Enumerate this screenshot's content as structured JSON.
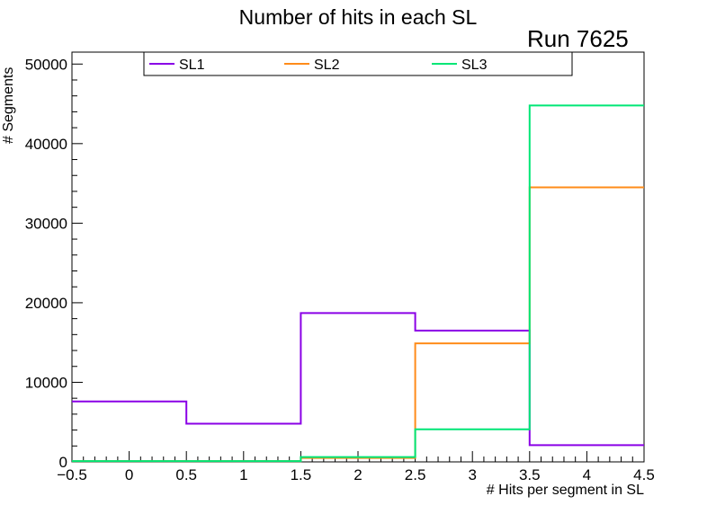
{
  "chart_data": {
    "type": "histogram",
    "title": "Number of hits in each SL",
    "annotation": "Run 7625",
    "xlabel": "# Hits per segment in SL",
    "ylabel": "# Segments",
    "xlim": [
      -0.5,
      4.5
    ],
    "ylim": [
      0,
      51500
    ],
    "x_bin_edges": [
      -0.5,
      0.5,
      1.5,
      2.5,
      3.5,
      4.5
    ],
    "x_ticks": [
      -0.5,
      0,
      0.5,
      1,
      1.5,
      2,
      2.5,
      3,
      3.5,
      4,
      4.5
    ],
    "x_tick_labels": [
      "−0.5",
      "0",
      "0.5",
      "1",
      "1.5",
      "2",
      "2.5",
      "3",
      "3.5",
      "4",
      "4.5"
    ],
    "y_ticks": [
      0,
      10000,
      20000,
      30000,
      40000,
      50000
    ],
    "y_tick_labels": [
      "0",
      "10000",
      "20000",
      "30000",
      "40000",
      "50000"
    ],
    "legend_position": "top",
    "grid": false,
    "series": [
      {
        "name": "SL1",
        "color": "#8a00e6",
        "values": [
          7600,
          4800,
          18700,
          16500,
          2100
        ]
      },
      {
        "name": "SL2",
        "color": "#ff8c1a",
        "values": [
          100,
          100,
          500,
          14900,
          34500
        ]
      },
      {
        "name": "SL3",
        "color": "#00e676",
        "values": [
          100,
          100,
          600,
          4100,
          44800
        ]
      }
    ]
  }
}
